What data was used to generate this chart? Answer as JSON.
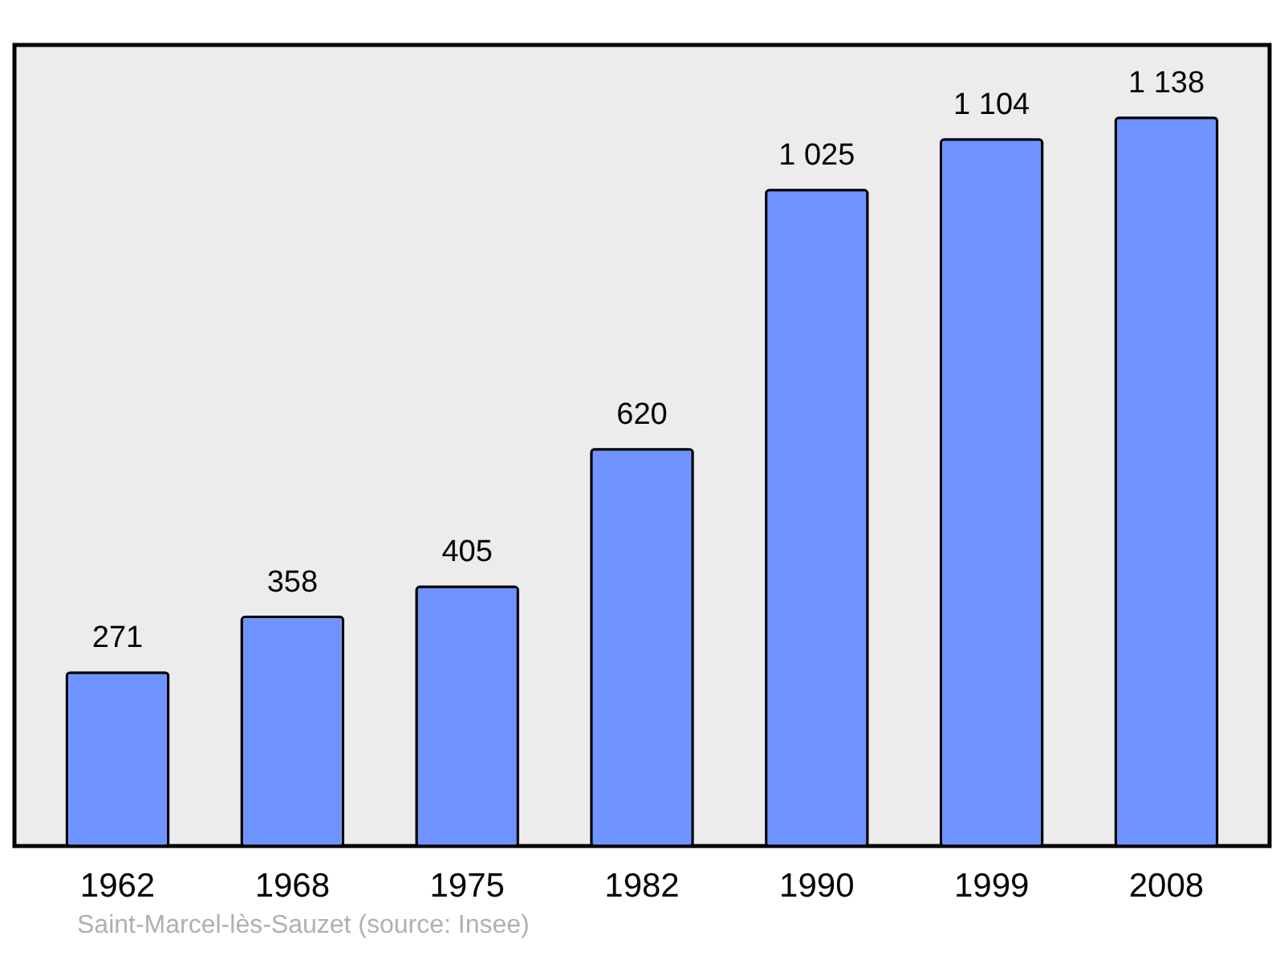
{
  "chart_data": {
    "type": "bar",
    "categories": [
      "1962",
      "1968",
      "1975",
      "1982",
      "1990",
      "1999",
      "2008"
    ],
    "values": [
      271,
      358,
      405,
      620,
      1025,
      1104,
      1138
    ],
    "value_labels": [
      "271",
      "358",
      "405",
      "620",
      "1 025",
      "1 104",
      "1 138"
    ],
    "color": "#7094ff",
    "annotations": [
      "Saint-Marcel-lès-Sauzet    (source: Insee)"
    ]
  }
}
